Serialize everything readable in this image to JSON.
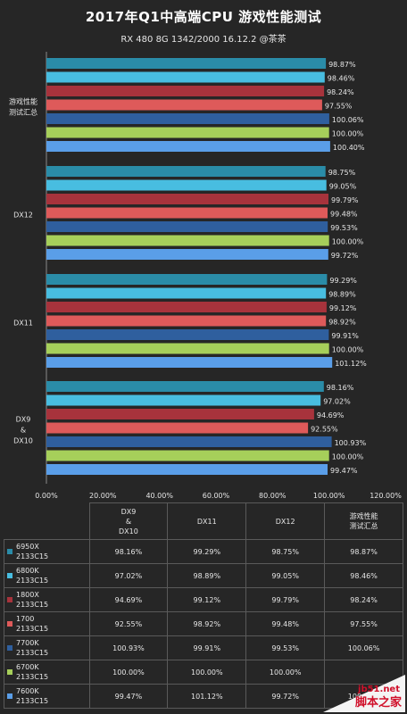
{
  "title": "2017年Q1中高端CPU  游戏性能测试",
  "subtitle": "RX 480  8G  1342/2000  16.12.2  @茶茶",
  "colors": {
    "6950X": "#2a8ca8",
    "6800K": "#48bde0",
    "1800X": "#a7333c",
    "1700": "#de5a5a",
    "7700K": "#2f5f9e",
    "6700K": "#a6cf5a",
    "7600K": "#5a9ee8",
    "background": "#262626"
  },
  "chart_data": {
    "type": "bar",
    "orientation": "horizontal",
    "categories": [
      "游戏性能测试汇总",
      "DX12",
      "DX11",
      "DX9 & DX10"
    ],
    "category_labels": [
      [
        "游戏性能",
        "测试汇总"
      ],
      [
        "DX12"
      ],
      [
        "DX11"
      ],
      [
        "DX9",
        "&",
        "DX10"
      ]
    ],
    "series": [
      {
        "name": "6950X 2133C15",
        "values": [
          98.87,
          98.75,
          99.29,
          98.16
        ]
      },
      {
        "name": "6800K 2133C15",
        "values": [
          98.46,
          99.05,
          98.89,
          97.02
        ]
      },
      {
        "name": "1800X 2133C15",
        "values": [
          98.24,
          99.79,
          99.12,
          94.69
        ]
      },
      {
        "name": "1700 2133C15",
        "values": [
          97.55,
          99.48,
          98.92,
          92.55
        ]
      },
      {
        "name": "7700K 2133C15",
        "values": [
          100.06,
          99.53,
          99.91,
          100.93
        ]
      },
      {
        "name": "6700K 2133C15",
        "values": [
          100.0,
          100.0,
          100.0,
          100.0
        ]
      },
      {
        "name": "7600K 2133C15",
        "values": [
          100.4,
          99.72,
          101.12,
          99.47
        ]
      }
    ],
    "value_labels": [
      [
        "98.87%",
        "98.75%",
        "99.29%",
        "98.16%"
      ],
      [
        "98.46%",
        "99.05%",
        "98.89%",
        "97.02%"
      ],
      [
        "98.24%",
        "99.79%",
        "99.12%",
        "94.69%"
      ],
      [
        "97.55%",
        "99.48%",
        "98.92%",
        "92.55%"
      ],
      [
        "100.06%",
        "99.53%",
        "99.91%",
        "100.93%"
      ],
      [
        "100.00%",
        "100.00%",
        "100.00%",
        "100.00%"
      ],
      [
        "100.40%",
        "99.72%",
        "101.12%",
        "99.47%"
      ]
    ],
    "xlim": [
      0,
      120
    ],
    "xticks": [
      "0.00%",
      "20.00%",
      "40.00%",
      "60.00%",
      "80.00%",
      "100.00%",
      "120.00%"
    ],
    "grid": false,
    "legend": "bottom data table"
  },
  "table": {
    "headers": [
      [
        "DX9",
        "&",
        "DX10"
      ],
      [
        "DX11"
      ],
      [
        "DX12"
      ],
      [
        "游戏性能",
        "测试汇总"
      ]
    ],
    "rows": [
      {
        "cpu": "6950X",
        "mem": "2133C15",
        "cells": [
          "98.16%",
          "99.29%",
          "98.75%",
          "98.87%"
        ]
      },
      {
        "cpu": "6800K",
        "mem": "2133C15",
        "cells": [
          "97.02%",
          "98.89%",
          "99.05%",
          "98.46%"
        ]
      },
      {
        "cpu": "1800X",
        "mem": "2133C15",
        "cells": [
          "94.69%",
          "99.12%",
          "99.79%",
          "98.24%"
        ]
      },
      {
        "cpu": "1700",
        "mem": "2133C15",
        "cells": [
          "92.55%",
          "98.92%",
          "99.48%",
          "97.55%"
        ]
      },
      {
        "cpu": "7700K",
        "mem": "2133C15",
        "cells": [
          "100.93%",
          "99.91%",
          "99.53%",
          "100.06%"
        ]
      },
      {
        "cpu": "6700K",
        "mem": "2133C15",
        "cells": [
          "100.00%",
          "100.00%",
          "100.00%",
          ""
        ]
      },
      {
        "cpu": "7600K",
        "mem": "2133C15",
        "cells": [
          "99.47%",
          "101.12%",
          "99.72%",
          "100.40%"
        ]
      }
    ]
  },
  "watermark": {
    "site": "jb51.net",
    "name": "脚本之家"
  }
}
